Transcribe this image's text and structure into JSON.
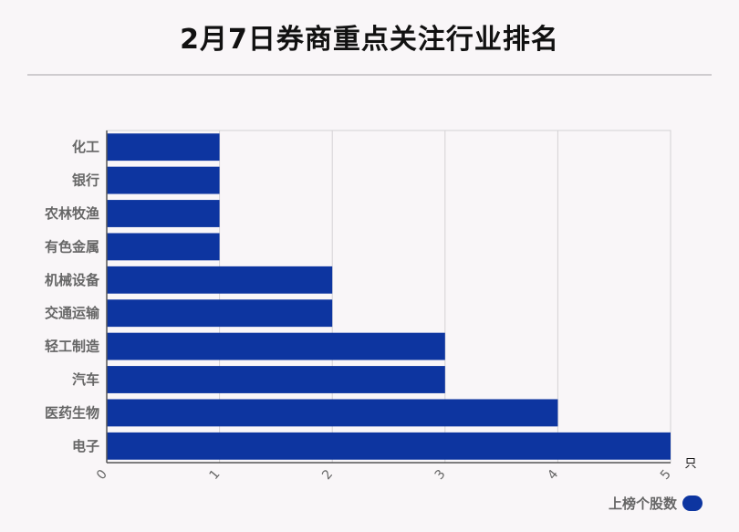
{
  "title": "2月7日券商重点关注行业排名",
  "chart_data": {
    "type": "bar",
    "orientation": "horizontal",
    "categories": [
      "化工",
      "银行",
      "农林牧渔",
      "有色金属",
      "机械设备",
      "交通运输",
      "轻工制造",
      "汽车",
      "医药生物",
      "电子"
    ],
    "series": [
      {
        "name": "上榜个股数",
        "values": [
          1,
          1,
          1,
          1,
          2,
          2,
          3,
          3,
          4,
          5
        ],
        "color": "#0d35a0"
      }
    ],
    "xlim": [
      0,
      5
    ],
    "xticks": [
      "0",
      "1",
      "2",
      "3",
      "4",
      "5"
    ],
    "xunit": "只",
    "grid": true,
    "legend_position": "bottom-right"
  }
}
